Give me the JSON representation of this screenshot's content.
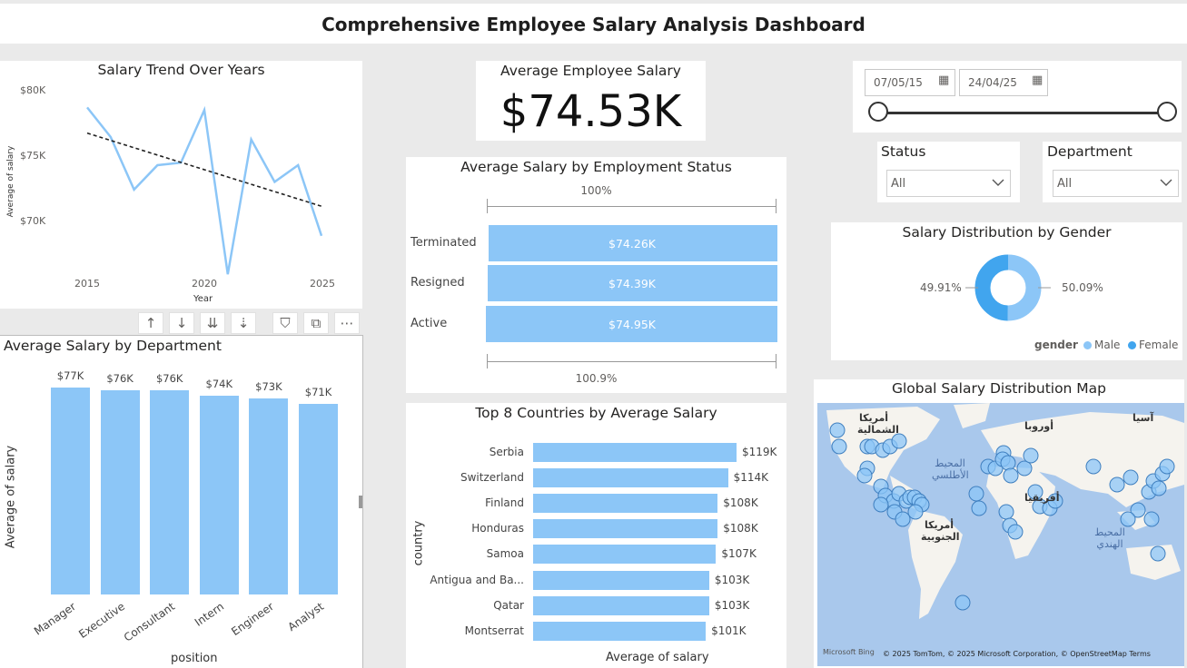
{
  "header": {
    "title": "Comprehensive Employee Salary Analysis Dashboard"
  },
  "trend": {
    "title": "Salary Trend Over Years",
    "xlabel": "Year",
    "ylabel": "Average of salary",
    "y_ticks": [
      "$80K",
      "$75K",
      "$70K"
    ],
    "x_ticks": [
      "2015",
      "2020",
      "2025"
    ]
  },
  "kpi": {
    "title": "Average Employee Salary",
    "value": "$74.53K"
  },
  "slicer": {
    "start_date": "07/05/15",
    "end_date": "24/04/25",
    "range_start_fraction": 0.0,
    "range_end_fraction": 1.0
  },
  "filters": {
    "status": {
      "label": "Status",
      "value": "All"
    },
    "department": {
      "label": "Department",
      "value": "All"
    }
  },
  "toolbar": {
    "sort_asc": "↑",
    "sort_desc": "↓",
    "drill_down": "⇊",
    "expand": "⇣",
    "filter": "⛉",
    "focus": "⧉",
    "more": "⋯"
  },
  "dept": {
    "title": "Average Salary by Department",
    "xlabel": "position",
    "ylabel": "Average of salary"
  },
  "status_chart": {
    "title": "Average Salary by Employment Status",
    "top_label": "100%",
    "bottom_label": "100.9%"
  },
  "countries": {
    "title": "Top 8 Countries by Average Salary",
    "xlabel": "Average of salary",
    "ylabel": "country"
  },
  "gender": {
    "title": "Salary Distribution by Gender",
    "left_pct": "49.91%",
    "right_pct": "50.09%",
    "legend_title": "gender",
    "legend_male": "Male",
    "legend_female": "Female",
    "male_color": "#8cc6f7",
    "female_color": "#41a5ee"
  },
  "map": {
    "title": "Global Salary Distribution Map",
    "labels": {
      "north_america": "أمريكا الشمالية",
      "europe": "أوروبا",
      "asia": "آسيا",
      "atlantic": "المحيط الأطلسي",
      "africa": "أفريقيا",
      "south_america": "أمريكا الجنوبية",
      "indian": "المحيط الهندي"
    },
    "attribution": "© 2025 TomTom, © 2025 Microsoft Corporation, © OpenStreetMap Terms",
    "logo": "Microsoft Bing"
  },
  "chart_data": [
    {
      "type": "line",
      "title": "Salary Trend Over Years",
      "xlabel": "Year",
      "ylabel": "Average of salary",
      "x": [
        2015,
        2016,
        2017,
        2018,
        2019,
        2020,
        2021,
        2022,
        2023,
        2024,
        2025
      ],
      "values": [
        79.2,
        76.9,
        72.8,
        74.7,
        74.9,
        79.0,
        66.2,
        76.7,
        73.4,
        74.7,
        69.2
      ],
      "trendline": [
        77.2,
        71.5
      ],
      "ylim": [
        66,
        80.5
      ],
      "y_ticks": [
        70,
        75,
        80
      ],
      "unit": "$K",
      "color": "#8cc6f7"
    },
    {
      "type": "bar",
      "title": "Average Salary by Department",
      "xlabel": "position",
      "ylabel": "Average of salary",
      "categories": [
        "Manager",
        "Executive",
        "Consultant",
        "Intern",
        "Engineer",
        "Analyst"
      ],
      "values": [
        77,
        76,
        76,
        74,
        73,
        71
      ],
      "labels": [
        "$77K",
        "$76K",
        "$76K",
        "$74K",
        "$73K",
        "$71K"
      ],
      "ylim": [
        0,
        80
      ],
      "color": "#8cc6f7"
    },
    {
      "type": "bar",
      "orientation": "horizontal",
      "title": "Average Salary by Employment Status",
      "categories": [
        "Terminated",
        "Resigned",
        "Active"
      ],
      "values": [
        74.26,
        74.39,
        74.95
      ],
      "labels": [
        "$74.26K",
        "$74.39K",
        "$74.95K"
      ],
      "color": "#8cc6f7"
    },
    {
      "type": "bar",
      "orientation": "horizontal",
      "title": "Top 8 Countries by Average Salary",
      "xlabel": "Average of salary",
      "ylabel": "country",
      "categories": [
        "Serbia",
        "Switzerland",
        "Finland",
        "Honduras",
        "Samoa",
        "Antigua and Ba...",
        "Qatar",
        "Montserrat"
      ],
      "values": [
        119,
        114,
        108,
        108,
        107,
        103,
        103,
        101
      ],
      "labels": [
        "$119K",
        "$114K",
        "$108K",
        "$108K",
        "$107K",
        "$103K",
        "$103K",
        "$101K"
      ],
      "color": "#8cc6f7"
    },
    {
      "type": "pie",
      "title": "Salary Distribution by Gender",
      "categories": [
        "Male",
        "Female"
      ],
      "values": [
        50.09,
        49.91
      ],
      "labels": [
        "50.09%",
        "49.91%"
      ]
    }
  ]
}
